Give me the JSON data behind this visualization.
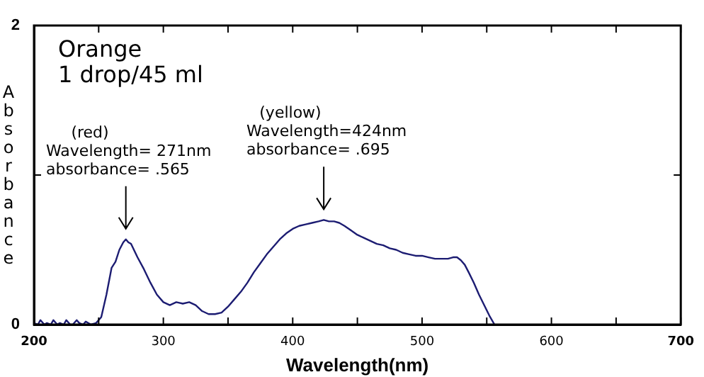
{
  "chart_data": {
    "type": "line",
    "title": "Orange",
    "subtitle": "1 drop/45 ml",
    "xlabel": "Wavelength(nm)",
    "ylabel": "Absorbance",
    "xlim": [
      200,
      700
    ],
    "xticks": [
      200,
      {
        "value": 250,
        "label": null
      },
      300,
      {
        "value": 350,
        "label": null
      },
      400,
      {
        "value": 450,
        "label": null
      },
      500,
      {
        "value": 550,
        "label": null
      },
      600,
      {
        "value": 650,
        "label": null
      },
      700
    ],
    "ylim": [
      0,
      2
    ],
    "yticks": [
      0,
      {
        "value": 1,
        "label": null
      },
      2
    ],
    "grid": false,
    "legend": false,
    "marker": "none",
    "line_style": "solid",
    "series": [
      {
        "color": "#1c1c72",
        "x": [
          200,
          203,
          205,
          208,
          210,
          213,
          215,
          218,
          220,
          223,
          225,
          228,
          230,
          233,
          235,
          238,
          240,
          244,
          248,
          252,
          256,
          260,
          263,
          266,
          269,
          271,
          273,
          275,
          280,
          285,
          290,
          295,
          300,
          305,
          310,
          315,
          320,
          325,
          330,
          335,
          340,
          345,
          350,
          355,
          360,
          365,
          370,
          375,
          380,
          385,
          390,
          395,
          400,
          405,
          410,
          415,
          420,
          424,
          428,
          432,
          436,
          440,
          445,
          450,
          455,
          460,
          465,
          470,
          475,
          480,
          485,
          490,
          495,
          500,
          505,
          510,
          515,
          520,
          524,
          527,
          530,
          533,
          536,
          540,
          544,
          548,
          552,
          556
        ],
        "values": [
          0.01,
          0.0,
          0.03,
          0.0,
          0.01,
          0.0,
          0.03,
          0.0,
          0.01,
          0.0,
          0.03,
          0.0,
          0.0,
          0.03,
          0.01,
          0.0,
          0.02,
          0.0,
          0.01,
          0.05,
          0.2,
          0.38,
          0.42,
          0.5,
          0.55,
          0.57,
          0.55,
          0.54,
          0.45,
          0.37,
          0.28,
          0.2,
          0.15,
          0.13,
          0.15,
          0.14,
          0.15,
          0.13,
          0.09,
          0.07,
          0.07,
          0.08,
          0.12,
          0.17,
          0.22,
          0.28,
          0.35,
          0.41,
          0.47,
          0.52,
          0.57,
          0.61,
          0.64,
          0.66,
          0.67,
          0.68,
          0.69,
          0.7,
          0.69,
          0.69,
          0.68,
          0.66,
          0.63,
          0.6,
          0.58,
          0.56,
          0.54,
          0.53,
          0.51,
          0.5,
          0.48,
          0.47,
          0.46,
          0.46,
          0.45,
          0.44,
          0.44,
          0.44,
          0.45,
          0.45,
          0.43,
          0.4,
          0.35,
          0.28,
          0.2,
          0.13,
          0.06,
          0.0
        ]
      }
    ],
    "annotations": [
      {
        "text": "(red)\nWavelength= 271nm\nabsorbance= .565",
        "x": 271,
        "y": 0.565
      },
      {
        "text": "(yellow)\nWavelength=424nm\nabsorbance= .695",
        "x": 424,
        "y": 0.695
      }
    ]
  }
}
